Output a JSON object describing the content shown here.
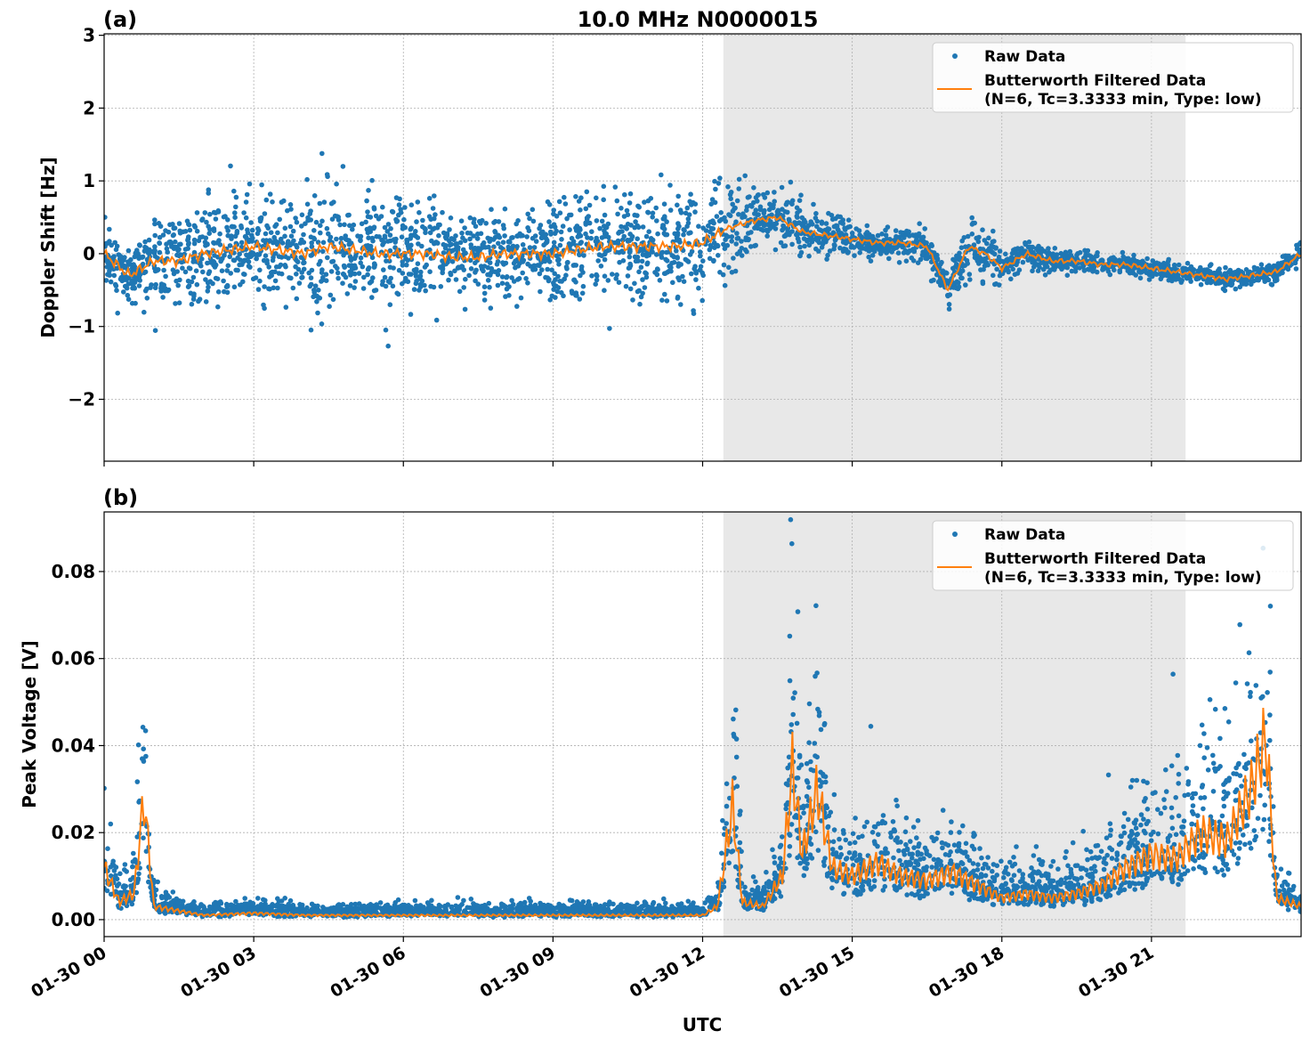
{
  "figure": {
    "title": "10.0 MHz N0000015",
    "xlabel": "UTC"
  },
  "colors": {
    "raw": "#1f77b4",
    "filtered": "#ff7f0e",
    "shade": "#e8e8e8",
    "grid": "#b0b0b0"
  },
  "chart_data": [
    {
      "panel_label": "(a)",
      "type": "scatter+line",
      "ylabel": "Doppler Shift [Hz]",
      "ylim": [
        -2.85,
        3.02
      ],
      "yticks": [
        -2,
        -1,
        0,
        1,
        2,
        3
      ],
      "ytick_labels": [
        "−2",
        "−1",
        "0",
        "1",
        "2",
        "3"
      ],
      "xlim": [
        "01-30 00:00",
        "01-31 00:00"
      ],
      "xticks": [
        "01-30 00",
        "01-30 03",
        "01-30 06",
        "01-30 09",
        "01-30 12",
        "01-30 15",
        "01-30 18",
        "01-30 21"
      ],
      "xtick_labels_shown": false,
      "grid": true,
      "shaded_span": [
        "12:25",
        "21:41"
      ],
      "legend": {
        "placement": "top-right",
        "entries": [
          "Raw Data",
          "Butterworth Filtered Data",
          "(N=6, Tc=3.3333 min, Type: low)"
        ]
      },
      "filtered": {
        "x": [
          "00:00",
          "00:30",
          "01:00",
          "01:30",
          "02:00",
          "02:30",
          "03:00",
          "03:30",
          "04:00",
          "04:30",
          "05:00",
          "05:30",
          "06:00",
          "06:30",
          "07:00",
          "07:30",
          "08:00",
          "08:30",
          "09:00",
          "09:30",
          "10:00",
          "10:30",
          "11:00",
          "11:30",
          "12:00",
          "12:30",
          "13:00",
          "13:30",
          "14:00",
          "14:30",
          "15:00",
          "15:30",
          "16:00",
          "16:30",
          "16:55",
          "17:20",
          "17:40",
          "18:00",
          "18:30",
          "19:00",
          "19:30",
          "20:00",
          "20:30",
          "21:00",
          "21:30",
          "22:00",
          "22:30",
          "23:00",
          "23:30",
          "24:00"
        ],
        "y": [
          0.0,
          -0.3,
          -0.1,
          -0.1,
          0.0,
          0.05,
          0.1,
          0.05,
          0.0,
          0.1,
          0.05,
          0.0,
          0.0,
          0.0,
          -0.05,
          -0.05,
          0.0,
          0.0,
          0.0,
          0.05,
          0.1,
          0.1,
          0.1,
          0.1,
          0.15,
          0.35,
          0.45,
          0.5,
          0.3,
          0.25,
          0.2,
          0.15,
          0.15,
          0.1,
          -0.5,
          0.1,
          0.0,
          -0.2,
          0.0,
          -0.1,
          -0.1,
          -0.15,
          -0.15,
          -0.2,
          -0.25,
          -0.3,
          -0.35,
          -0.3,
          -0.25,
          0.0
        ]
      },
      "raw_spread_by_hour": [
        0.25,
        0.45,
        0.5,
        0.55,
        0.55,
        0.5,
        0.45,
        0.4,
        0.4,
        0.45,
        0.5,
        0.5,
        0.4,
        0.25,
        0.15,
        0.12,
        0.14,
        0.25,
        0.12,
        0.1,
        0.08,
        0.08,
        0.08,
        0.1
      ]
    },
    {
      "panel_label": "(b)",
      "type": "scatter+line",
      "ylabel": "Peak Voltage [V]",
      "ylim": [
        -0.0039,
        0.0937
      ],
      "yticks": [
        0,
        0.02,
        0.04,
        0.06,
        0.08
      ],
      "ytick_labels": [
        "0.00",
        "0.02",
        "0.04",
        "0.06",
        "0.08"
      ],
      "xlim": [
        "01-30 00:00",
        "01-31 00:00"
      ],
      "xticks": [
        "01-30 00",
        "01-30 03",
        "01-30 06",
        "01-30 09",
        "01-30 12",
        "01-30 15",
        "01-30 18",
        "01-30 21"
      ],
      "grid": true,
      "shaded_span": [
        "12:25",
        "21:41"
      ],
      "legend": {
        "placement": "top-right",
        "entries": [
          "Raw Data",
          "Butterworth Filtered Data",
          "(N=6, Tc=3.3333 min, Type: low)"
        ]
      },
      "filtered": {
        "x": [
          "00:00",
          "00:18",
          "00:36",
          "00:48",
          "01:00",
          "01:30",
          "02:00",
          "03:00",
          "04:00",
          "05:00",
          "06:00",
          "07:00",
          "08:00",
          "09:00",
          "10:00",
          "11:00",
          "12:00",
          "12:18",
          "12:36",
          "12:48",
          "13:12",
          "13:36",
          "13:48",
          "14:00",
          "14:18",
          "14:36",
          "15:00",
          "15:30",
          "16:00",
          "16:30",
          "17:00",
          "17:30",
          "18:00",
          "18:30",
          "19:00",
          "19:30",
          "20:00",
          "20:30",
          "21:00",
          "21:30",
          "22:00",
          "22:30",
          "23:00",
          "23:18",
          "23:30",
          "24:00"
        ],
        "y": [
          0.012,
          0.004,
          0.006,
          0.028,
          0.003,
          0.002,
          0.001,
          0.0015,
          0.001,
          0.001,
          0.001,
          0.001,
          0.001,
          0.001,
          0.001,
          0.001,
          0.001,
          0.003,
          0.026,
          0.004,
          0.003,
          0.01,
          0.035,
          0.015,
          0.03,
          0.012,
          0.01,
          0.013,
          0.01,
          0.009,
          0.011,
          0.008,
          0.005,
          0.006,
          0.005,
          0.006,
          0.008,
          0.012,
          0.015,
          0.014,
          0.02,
          0.018,
          0.03,
          0.042,
          0.005,
          0.003
        ]
      }
    }
  ]
}
